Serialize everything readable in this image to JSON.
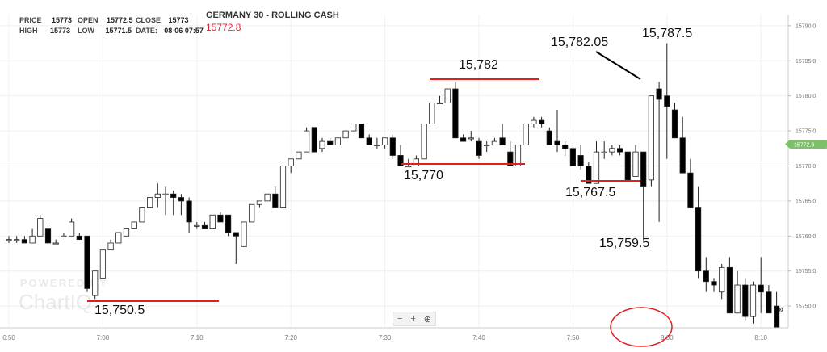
{
  "header": {
    "price_label": "PRICE",
    "price_value": "15773",
    "high_label": "HIGH",
    "high_value": "15773",
    "open_label": "OPEN",
    "open_value": "15772.5",
    "low_label": "LOW",
    "low_value": "15771.5",
    "close_label": "CLOSE",
    "close_value": "15773",
    "date_label": "DATE:",
    "date_value": "08-06 07:57",
    "instrument": "GERMANY 30 - ROLLING CASH",
    "current_price": "15772.8"
  },
  "watermark": {
    "line1": "POWERED BY",
    "line2": "ChartIQ"
  },
  "zoom": {
    "minus": "−",
    "plus": "+",
    "search": "⊕"
  },
  "nav_arrows": "»",
  "colors": {
    "up": "#ffffff",
    "down": "#000000",
    "annotation": "#e02020",
    "price_tag": "#7cc06a",
    "circle": "#dd2020"
  },
  "chart_data": {
    "type": "candlestick",
    "title": "GERMANY 30 - ROLLING CASH",
    "x_ticks": [
      "6:50",
      "7:00",
      "7:10",
      "7:20",
      "7:30",
      "7:40",
      "7:50",
      "8:00",
      "8:10"
    ],
    "y_ticks": [
      "15790.0",
      "15785.0",
      "15780.0",
      "15775.0",
      "15770.0",
      "15765.0",
      "15760.0",
      "15755.0",
      "15750.0"
    ],
    "ylim": [
      15746.9,
      15791.6
    ],
    "grid": true,
    "current_price_tag": "15772.8",
    "candles_ohlc": [
      [
        15759.5,
        15760,
        15759,
        15759.5
      ],
      [
        15759.5,
        15760,
        15759,
        15759.5
      ],
      [
        15759.5,
        15760,
        15759,
        15759
      ],
      [
        15759,
        15761,
        15759,
        15760
      ],
      [
        15760,
        15763,
        15760,
        15762.5
      ],
      [
        15761,
        15761.5,
        15759,
        15759
      ],
      [
        15759,
        15759.5,
        15759,
        15759
      ],
      [
        15760,
        15760.5,
        15760,
        15760
      ],
      [
        15760,
        15762.5,
        15760,
        15762
      ],
      [
        15760,
        15760.5,
        15760,
        15759.5
      ],
      [
        15760,
        15760,
        15752,
        15752.5
      ],
      [
        15751.5,
        15755,
        15751,
        15755
      ],
      [
        15754,
        15758,
        15754,
        15758
      ],
      [
        15758,
        15759.5,
        15758,
        15759
      ],
      [
        15759,
        15760,
        15759,
        15760.5
      ],
      [
        15760,
        15761,
        15760,
        15761
      ],
      [
        15761,
        15762,
        15761,
        15762
      ],
      [
        15762,
        15764,
        15762,
        15764
      ],
      [
        15764,
        15765.5,
        15764,
        15765.5
      ],
      [
        15765.5,
        15767.5,
        15764,
        15766
      ],
      [
        15766,
        15767,
        15763,
        15766
      ],
      [
        15766,
        15766.5,
        15763,
        15765.5
      ],
      [
        15765.5,
        15766,
        15763,
        15765
      ],
      [
        15765,
        15765.5,
        15760.5,
        15762
      ],
      [
        15761.5,
        15762,
        15761,
        15761.5
      ],
      [
        15761.5,
        15762,
        15761,
        15761
      ],
      [
        15761,
        15763,
        15761,
        15763
      ],
      [
        15763,
        15763.5,
        15762,
        15762
      ],
      [
        15763,
        15763,
        15760,
        15760.5
      ],
      [
        15760.5,
        15760.5,
        15756,
        15760
      ],
      [
        15758.5,
        15762,
        15758.5,
        15762
      ],
      [
        15762,
        15764.5,
        15762,
        15764.5
      ],
      [
        15764.5,
        15765,
        15764,
        15765
      ],
      [
        15765,
        15766,
        15765,
        15766
      ],
      [
        15766,
        15767,
        15764,
        15764
      ],
      [
        15764,
        15770.5,
        15764,
        15770
      ],
      [
        15770,
        15771,
        15769,
        15771
      ],
      [
        15771,
        15772,
        15771,
        15772
      ],
      [
        15772,
        15775.5,
        15772,
        15775
      ],
      [
        15775.5,
        15775.5,
        15772,
        15772
      ],
      [
        15772.5,
        15774,
        15772,
        15773.5
      ],
      [
        15773.5,
        15774,
        15773,
        15773
      ],
      [
        15773,
        15774,
        15773,
        15774
      ],
      [
        15774,
        15775,
        15774,
        15775
      ],
      [
        15775,
        15776,
        15775,
        15776
      ],
      [
        15776,
        15776,
        15774,
        15774
      ],
      [
        15774,
        15774.5,
        15773,
        15773
      ],
      [
        15773,
        15774,
        15772.5,
        15773
      ],
      [
        15773,
        15773,
        15772.5,
        15774
      ],
      [
        15774,
        15774.5,
        15771,
        15771.5
      ],
      [
        15771.5,
        15773,
        15770,
        15770
      ],
      [
        15770,
        15771,
        15770,
        15770
      ],
      [
        15770,
        15771.5,
        15770.5,
        15771
      ],
      [
        15771,
        15776,
        15771,
        15776
      ],
      [
        15776,
        15779,
        15776,
        15779
      ],
      [
        15779,
        15780,
        15779,
        15779
      ],
      [
        15779,
        15781,
        15779,
        15781
      ],
      [
        15781,
        15782,
        15774,
        15774
      ],
      [
        15774,
        15774.5,
        15773.5,
        15773.5
      ],
      [
        15774,
        15775,
        15773.5,
        15774
      ],
      [
        15773.5,
        15774,
        15771,
        15771.5
      ],
      [
        15773,
        15773.5,
        15772,
        15773
      ],
      [
        15773,
        15774,
        15773,
        15773.5
      ],
      [
        15774,
        15776,
        15773.5,
        15773
      ],
      [
        15772,
        15773.5,
        15770,
        15770
      ],
      [
        15770,
        15773,
        15770,
        15773
      ],
      [
        15773,
        15776,
        15773,
        15776
      ],
      [
        15776,
        15777,
        15775.5,
        15776.5
      ],
      [
        15776.5,
        15777,
        15775.5,
        15776
      ],
      [
        15775,
        15775.5,
        15773.5,
        15773
      ],
      [
        15773.5,
        15778,
        15772,
        15773
      ],
      [
        15773,
        15773.5,
        15771.5,
        15772.5
      ],
      [
        15772.5,
        15773,
        15770,
        15770
      ],
      [
        15771.5,
        15773,
        15769.5,
        15770
      ],
      [
        15770,
        15770.5,
        15767.5,
        15767.5
      ],
      [
        15767.5,
        15773.5,
        15767.5,
        15772
      ],
      [
        15772,
        15773.5,
        15771,
        15772
      ],
      [
        15772,
        15773,
        15771.5,
        15772.5
      ],
      [
        15772.5,
        15773,
        15771.5,
        15772
      ],
      [
        15772,
        15772,
        15768,
        15768
      ],
      [
        15768.5,
        15773,
        15768.5,
        15772
      ],
      [
        15772,
        15772,
        15759.5,
        15767
      ],
      [
        15768,
        15780,
        15767,
        15780
      ],
      [
        15781,
        15782,
        15762,
        15779.5
      ],
      [
        15780,
        15787.5,
        15771,
        15778.5
      ],
      [
        15778,
        15779,
        15775,
        15774
      ],
      [
        15774,
        15777,
        15770,
        15769
      ],
      [
        15769,
        15771,
        15764,
        15764
      ],
      [
        15764,
        15767,
        15754,
        15755
      ],
      [
        15755,
        15757,
        15752,
        15753.5
      ],
      [
        15753.5,
        15754,
        15752,
        15753
      ],
      [
        15752,
        15756,
        15751,
        15755.5
      ],
      [
        15755.5,
        15757,
        15749,
        15749
      ],
      [
        15749,
        15755,
        15749,
        15753
      ],
      [
        15753,
        15754,
        15748,
        15748.5
      ],
      [
        15748.5,
        15753.5,
        15747.5,
        15753
      ],
      [
        15753,
        15757,
        15749,
        15752
      ],
      [
        15752,
        15753,
        15749,
        15749
      ],
      [
        15750,
        15752,
        15747.5,
        15747
      ]
    ],
    "annotations": [
      {
        "text": "15,750.5"
      },
      {
        "text": "15,770"
      },
      {
        "text": "15,782"
      },
      {
        "text": "15,767.5"
      },
      {
        "text": "15,759.5"
      },
      {
        "text": "15,782.05"
      },
      {
        "text": "15,787.5"
      }
    ]
  }
}
